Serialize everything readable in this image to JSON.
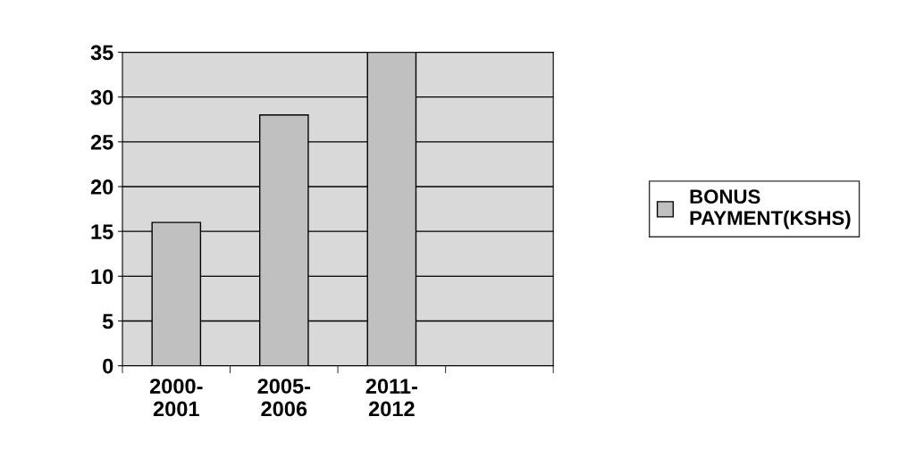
{
  "chart_data": {
    "type": "bar",
    "categories": [
      "2000-\n2001",
      "2005-\n2006",
      "2011-\n2012",
      null
    ],
    "series": [
      {
        "name": "BONUS\nPAYMENT(KSHS)",
        "color": "#c0c0c0",
        "values": [
          16,
          28,
          35,
          null
        ]
      }
    ],
    "ylim": [
      0,
      35
    ],
    "yticks": [
      0,
      5,
      10,
      15,
      20,
      25,
      30,
      35
    ],
    "grid": "y",
    "legend": "right"
  }
}
